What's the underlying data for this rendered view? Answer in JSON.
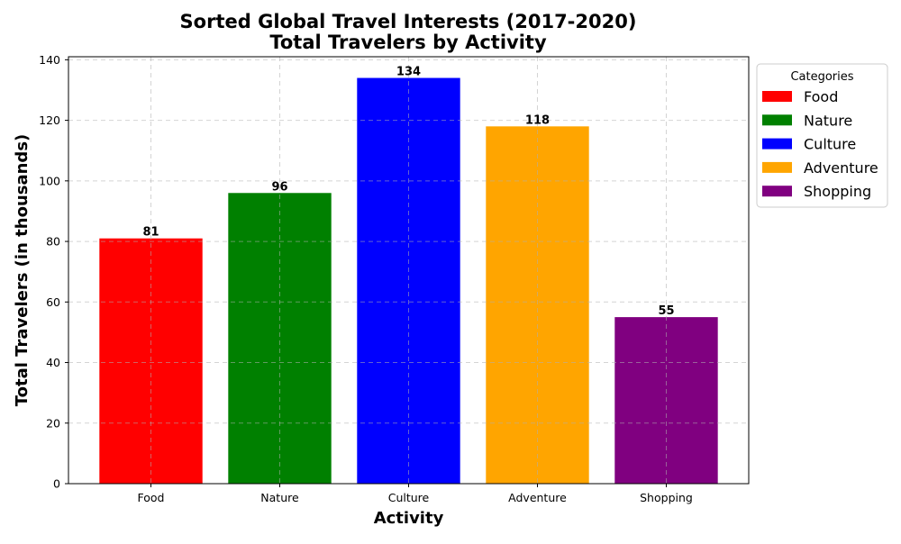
{
  "chart_data": {
    "type": "bar",
    "title": [
      "Sorted Global Travel Interests (2017-2020)",
      "Total Travelers by Activity"
    ],
    "xlabel": "Activity",
    "ylabel": "Total Travelers (in thousands)",
    "categories": [
      "Food",
      "Nature",
      "Culture",
      "Adventure",
      "Shopping"
    ],
    "values": [
      81,
      96,
      134,
      118,
      55
    ],
    "colors": [
      "#ff0000",
      "#008000",
      "#0000ff",
      "#ffa500",
      "#800080"
    ],
    "data_labels": [
      "81",
      "96",
      "134",
      "118",
      "55"
    ],
    "ylim": [
      0,
      141
    ],
    "yticks": [
      0,
      20,
      40,
      60,
      80,
      100,
      120,
      140
    ],
    "grid": true,
    "legend": {
      "title": "Categories",
      "placement": "outside-right-top",
      "entries": [
        "Food",
        "Nature",
        "Culture",
        "Adventure",
        "Shopping"
      ]
    }
  }
}
